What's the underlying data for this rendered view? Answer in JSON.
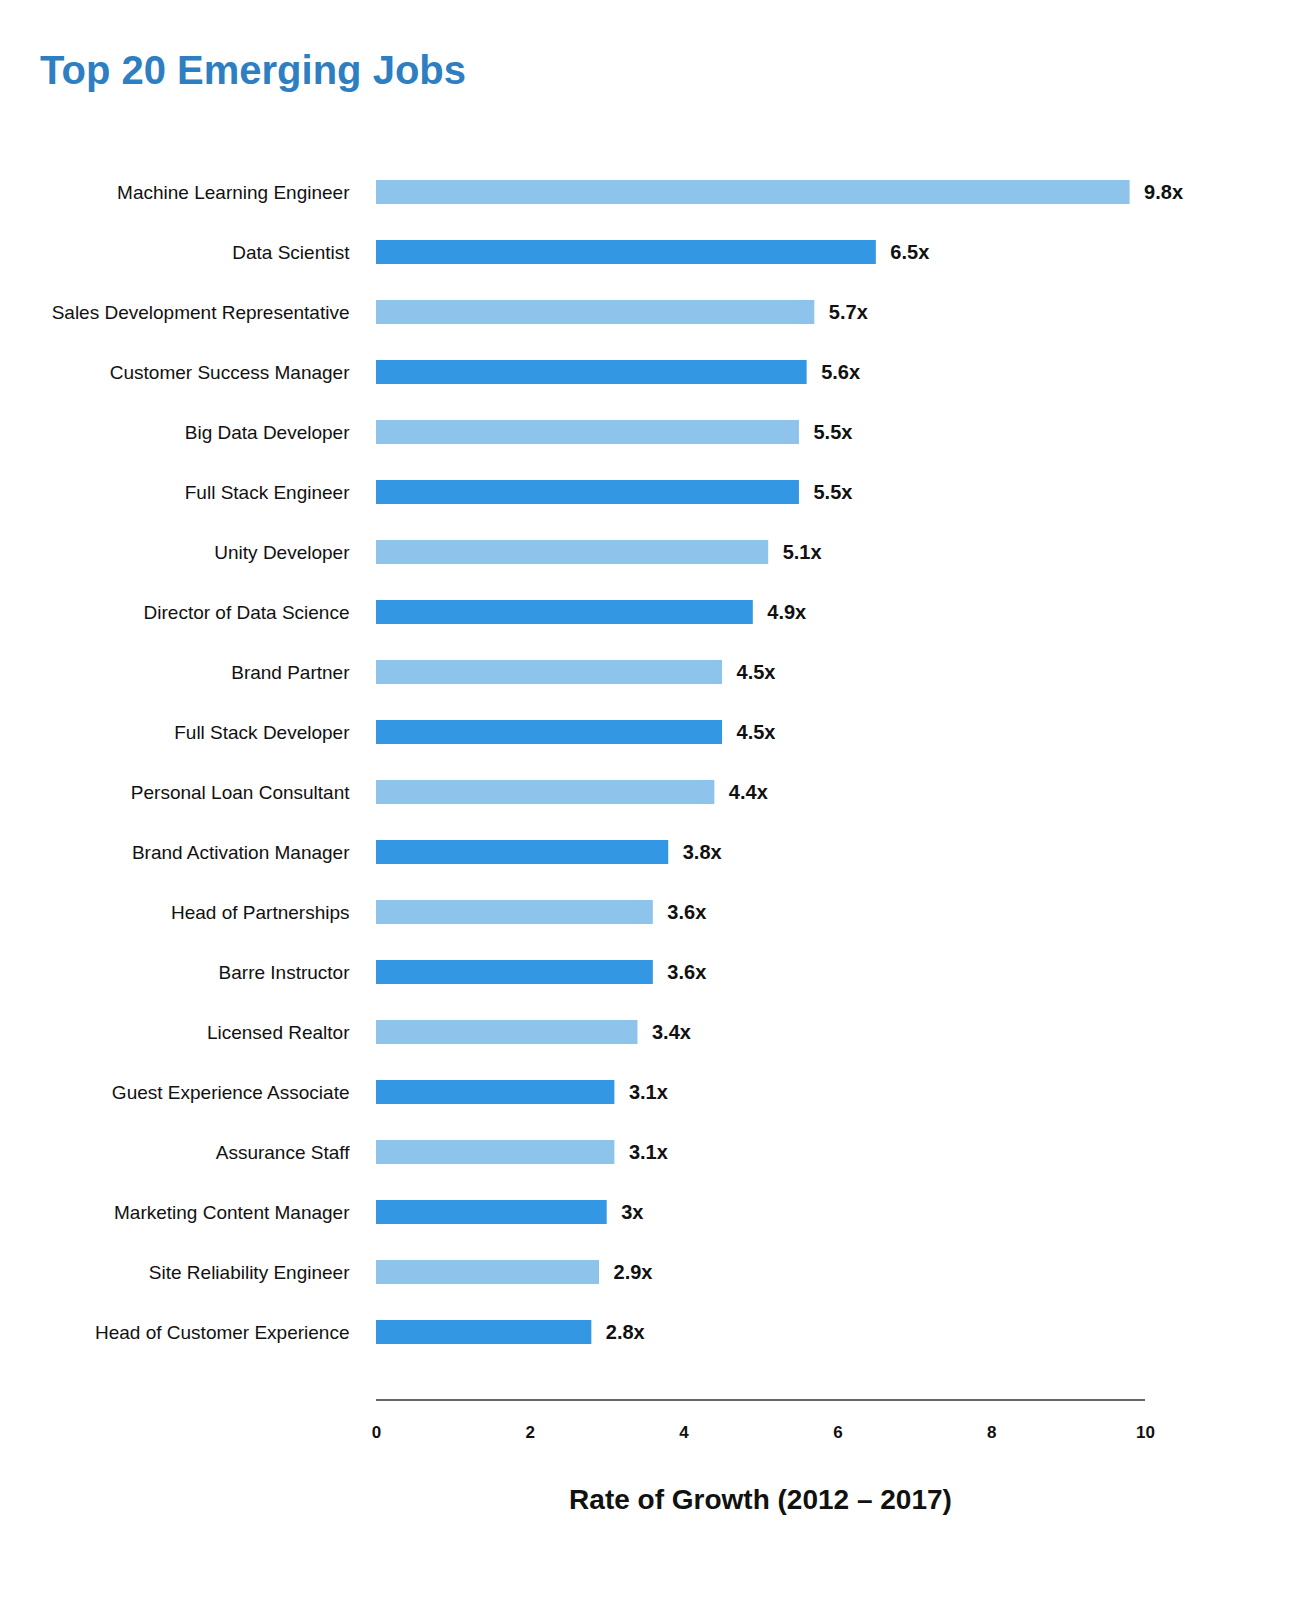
{
  "chart_data": {
    "type": "bar",
    "title": "Top 20 Emerging Jobs",
    "x_label": "Rate of Growth (2012 – 2017)",
    "orientation": "horizontal",
    "categories": [
      "Machine Learning Engineer",
      "Data Scientist",
      "Sales Development Representative",
      "Customer Success Manager",
      "Big Data Developer",
      "Full Stack Engineer",
      "Unity Developer",
      "Director of Data Science",
      "Brand Partner",
      "Full Stack Developer",
      "Personal Loan Consultant",
      "Brand Activation Manager",
      "Head of Partnerships",
      "Barre Instructor",
      "Licensed Realtor",
      "Guest Experience Associate",
      "Assurance Staff",
      "Marketing Content Manager",
      "Site Reliability Engineer",
      "Head of Customer Experience"
    ],
    "values": [
      9.8,
      6.5,
      5.7,
      5.6,
      5.5,
      5.5,
      5.1,
      4.9,
      4.5,
      4.5,
      4.4,
      3.8,
      3.6,
      3.6,
      3.4,
      3.1,
      3.1,
      3,
      2.9,
      2.8
    ],
    "value_labels": [
      "9.8x",
      "6.5x",
      "5.7x",
      "5.6x",
      "5.5x",
      "5.5x",
      "5.1x",
      "4.9x",
      "4.5x",
      "4.5x",
      "4.4x",
      "3.8x",
      "3.6x",
      "3.6x",
      "3.4x",
      "3.1x",
      "3.1x",
      "3x",
      "2.9x",
      "2.8x"
    ],
    "colors": [
      "#8ec4ec",
      "#3497e4",
      "#8ec4ec",
      "#3497e4",
      "#8ec4ec",
      "#3497e4",
      "#8ec4ec",
      "#3497e4",
      "#8ec4ec",
      "#3497e4",
      "#8ec4ec",
      "#3497e4",
      "#8ec4ec",
      "#3497e4",
      "#8ec4ec",
      "#3497e4",
      "#8ec4ec",
      "#3497e4",
      "#8ec4ec",
      "#3497e4"
    ],
    "xlim": [
      0,
      10
    ],
    "xticks": [
      0,
      2,
      4,
      6,
      8,
      10
    ],
    "grid": false,
    "data_labels": true
  }
}
